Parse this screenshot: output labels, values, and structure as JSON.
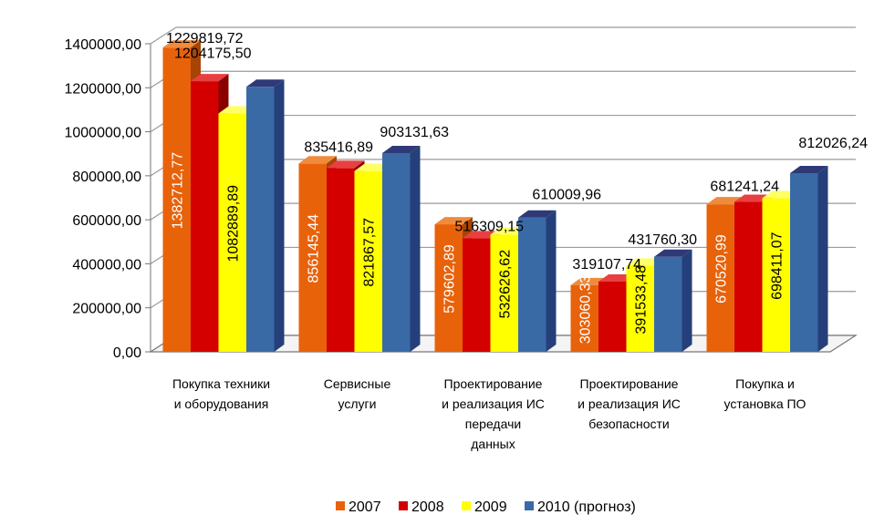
{
  "chart_data": {
    "type": "bar",
    "categories": [
      [
        "Покупка техники",
        "и оборудования"
      ],
      [
        "Сервисные",
        "услуги"
      ],
      [
        "Проектирование",
        "и реализация ИС",
        "передачи",
        "данных"
      ],
      [
        "Проектирование",
        "и реализация ИС",
        "безопасности"
      ],
      [
        "Покупка и",
        "установка ПО"
      ]
    ],
    "series": [
      {
        "name": "2007",
        "color": "#e8620a",
        "side": "#a84406",
        "top": "#f08a3c",
        "values": [
          1382712.77,
          856145.44,
          579602.89,
          303060.33,
          670520.99
        ]
      },
      {
        "name": "2008",
        "color": "#d40000",
        "side": "#8a0000",
        "top": "#e84040",
        "values": [
          1229819.72,
          835416.89,
          516309.15,
          319107.74,
          681241.24
        ]
      },
      {
        "name": "2009",
        "color": "#ffff00",
        "side": "#c8c800",
        "top": "#ffff66",
        "values": [
          1082889.89,
          821867.57,
          532626.62,
          391533.48,
          698411.07
        ]
      },
      {
        "name": "2010 (прогноз)",
        "color": "#3a6aa6",
        "side": "#253f7a",
        "top": "#2e3a78",
        "values": [
          1204175.5,
          903131.63,
          610009.96,
          431760.3,
          812026.24
        ]
      }
    ],
    "value_labels": [
      [
        "1382712,77",
        "856145,44",
        "579602,89",
        "303060,33",
        "670520,99"
      ],
      [
        "1229819,72",
        "835416,89",
        "516309,15",
        "319107,74",
        "681241,24"
      ],
      [
        "1082889,89",
        "821867,57",
        "532626,62",
        "391533,48",
        "698411,07"
      ],
      [
        "1204175,50",
        "903131,63",
        "610009,96",
        "431760,30",
        "812026,24"
      ]
    ],
    "yticks": [
      "0,00",
      "200000,00",
      "400000,00",
      "600000,00",
      "800000,00",
      "1000000,00",
      "1200000,00",
      "1400000,00"
    ],
    "ylim": [
      0,
      1400000
    ],
    "grid": true,
    "legend_position": "bottom",
    "title": "",
    "xlabel": "",
    "ylabel": ""
  }
}
